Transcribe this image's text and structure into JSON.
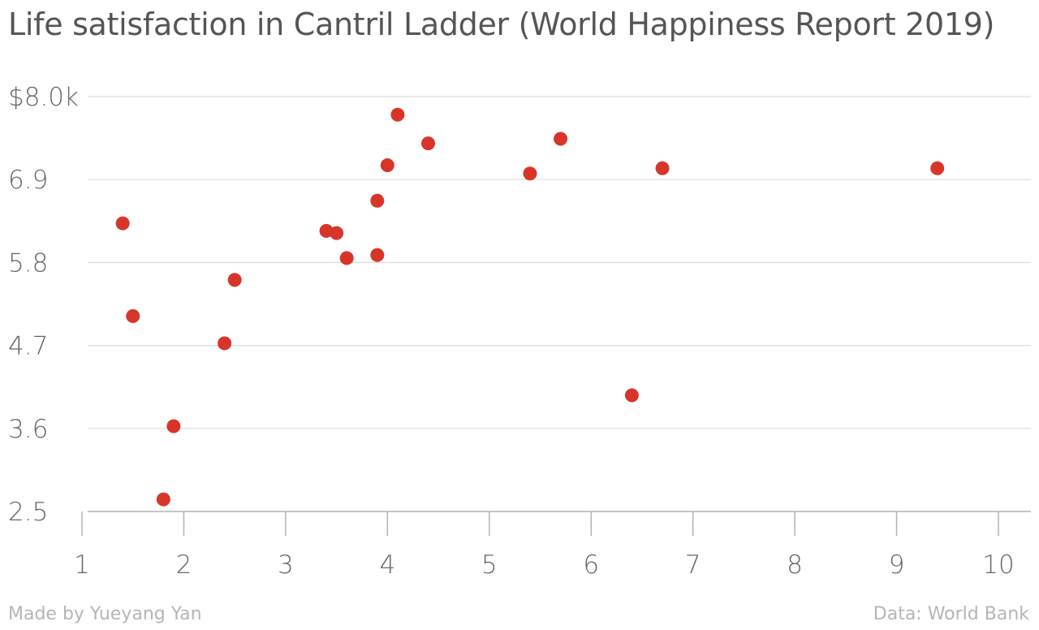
{
  "title": "Life satisfaction in Cantril Ladder (World Happiness Report 2019)",
  "footer": {
    "credit": "Made by Yueyang Yan",
    "source": "Data: World Bank"
  },
  "colors": {
    "point": "#d7352a",
    "grid": "#dddddd",
    "axis": "#b3b3b3",
    "title": "#555555",
    "tick": "#666666",
    "footer": "#b5b5b5"
  },
  "chart_data": {
    "type": "scatter",
    "title": "Life satisfaction in Cantril Ladder (World Happiness Report 2019)",
    "xlabel": "",
    "ylabel": "",
    "xlim": [
      1,
      10
    ],
    "ylim": [
      2.5,
      8.0
    ],
    "x_ticks": [
      1,
      2,
      3,
      4,
      5,
      6,
      7,
      8,
      9,
      10
    ],
    "x_tick_labels": [
      "1",
      "2",
      "3",
      "4",
      "5",
      "6",
      "7",
      "8",
      "9",
      "10"
    ],
    "y_ticks": [
      2.5,
      3.6,
      4.7,
      5.8,
      6.9,
      8.0
    ],
    "y_tick_labels": [
      "2.5",
      "3.6",
      "4.7",
      "5.8",
      "6.9",
      "$8.0k"
    ],
    "grid": "horizontal",
    "points": [
      {
        "x": 1.4,
        "y": 6.32
      },
      {
        "x": 1.5,
        "y": 5.09
      },
      {
        "x": 1.8,
        "y": 2.66
      },
      {
        "x": 1.9,
        "y": 3.63
      },
      {
        "x": 2.4,
        "y": 4.73
      },
      {
        "x": 2.5,
        "y": 5.57
      },
      {
        "x": 3.4,
        "y": 6.22
      },
      {
        "x": 3.5,
        "y": 6.19
      },
      {
        "x": 3.6,
        "y": 5.86
      },
      {
        "x": 3.9,
        "y": 5.9
      },
      {
        "x": 3.9,
        "y": 6.62
      },
      {
        "x": 4.0,
        "y": 7.09
      },
      {
        "x": 4.1,
        "y": 7.76
      },
      {
        "x": 4.4,
        "y": 7.38
      },
      {
        "x": 5.4,
        "y": 6.98
      },
      {
        "x": 5.7,
        "y": 7.44
      },
      {
        "x": 6.4,
        "y": 4.04
      },
      {
        "x": 6.7,
        "y": 7.05
      },
      {
        "x": 9.4,
        "y": 7.05
      }
    ]
  }
}
